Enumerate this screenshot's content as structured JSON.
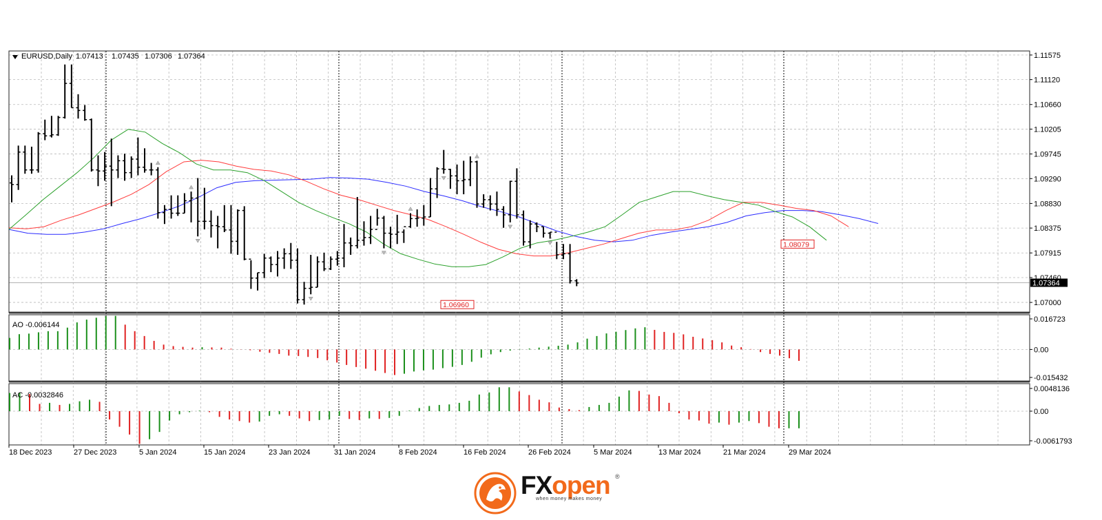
{
  "chart_data": {
    "type": "ohlc",
    "symbol_label": "EURUSD,Daily",
    "ohlc_header": [
      "1.07413",
      "1.07435",
      "1.07306",
      "1.07364"
    ],
    "last_price_label": "1.07364",
    "price_axis": {
      "ticks": [
        "1.11575",
        "1.11120",
        "1.10660",
        "1.10205",
        "1.09745",
        "1.09290",
        "1.08830",
        "1.08375",
        "1.07915",
        "1.07460",
        "1.07000"
      ],
      "ylim": [
        1.0681,
        1.1165
      ]
    },
    "date_labels": [
      "18 Dec 2023",
      "27 Dec 2023",
      "5 Jan 2024",
      "15 Jan 2024",
      "23 Jan 2024",
      "31 Jan 2024",
      "8 Feb 2024",
      "16 Feb 2024",
      "26 Feb 2024",
      "5 Mar 2024",
      "13 Mar 2024",
      "21 Mar 2024",
      "29 Mar 2024"
    ],
    "annotations": [
      {
        "text": "1.06960",
        "bar": 40,
        "value": 1.0696
      },
      {
        "text": "1.08079",
        "bar": 73,
        "value": 1.08079
      }
    ],
    "bars": [
      [
        1.0921,
        1.0935,
        1.0885,
        1.0918
      ],
      [
        1.0918,
        1.099,
        1.0908,
        1.0978
      ],
      [
        1.0978,
        1.099,
        1.0938,
        1.0945
      ],
      [
        1.0945,
        1.0988,
        1.0938,
        1.0945
      ],
      [
        1.0945,
        1.1015,
        1.094,
        1.1012
      ],
      [
        1.1012,
        1.1038,
        1.1,
        1.1008
      ],
      [
        1.1008,
        1.1045,
        1.1005,
        1.101
      ],
      [
        1.101,
        1.1045,
        1.1008,
        1.1042
      ],
      [
        1.1042,
        1.114,
        1.104,
        1.1105
      ],
      [
        1.1105,
        1.114,
        1.106,
        1.106
      ],
      [
        1.106,
        1.1085,
        1.104,
        1.1055
      ],
      [
        1.1055,
        1.1065,
        1.1036,
        1.1038
      ],
      [
        1.1038,
        1.104,
        1.0942,
        1.0945
      ],
      [
        1.0945,
        1.0972,
        1.0915,
        1.0943
      ],
      [
        1.0943,
        1.0978,
        1.0925,
        1.0952
      ],
      [
        1.0952,
        1.1003,
        1.0878,
        1.0945
      ],
      [
        1.0945,
        1.0972,
        1.093,
        1.0962
      ],
      [
        1.0962,
        1.0975,
        1.0925,
        1.094
      ],
      [
        1.094,
        1.097,
        1.093,
        1.0965
      ],
      [
        1.0965,
        1.1005,
        1.0935,
        1.095
      ],
      [
        1.095,
        1.0985,
        1.094,
        1.0945
      ],
      [
        1.0945,
        1.0958,
        1.0935,
        1.0945
      ],
      [
        1.0945,
        1.095,
        1.0855,
        1.0866
      ],
      [
        1.0866,
        1.088,
        1.0845,
        1.0872
      ],
      [
        1.0872,
        1.0898,
        1.0855,
        1.0865
      ],
      [
        1.0865,
        1.0898,
        1.086,
        1.0865
      ],
      [
        1.0865,
        1.0902,
        1.0865,
        1.0888
      ],
      [
        1.0888,
        1.0905,
        1.0848,
        1.0893
      ],
      [
        1.0893,
        1.093,
        1.0822,
        1.085
      ],
      [
        1.085,
        1.0912,
        1.0835,
        1.085
      ],
      [
        1.085,
        1.087,
        1.082,
        1.0842
      ],
      [
        1.0842,
        1.086,
        1.08,
        1.084
      ],
      [
        1.084,
        1.088,
        1.083,
        1.0834
      ],
      [
        1.0834,
        1.088,
        1.079,
        1.0813
      ],
      [
        1.0813,
        1.0872,
        1.0788,
        1.087
      ],
      [
        1.087,
        1.0878,
        1.0778,
        1.078
      ],
      [
        1.078,
        1.0778,
        1.0725,
        1.0745
      ],
      [
        1.0745,
        1.0755,
        1.0722,
        1.0755
      ],
      [
        1.0755,
        1.079,
        1.0745,
        1.0782
      ],
      [
        1.0782,
        1.0785,
        1.0756,
        1.077
      ],
      [
        1.077,
        1.0795,
        1.0748,
        1.0782
      ],
      [
        1.0782,
        1.08,
        1.0762,
        1.079
      ],
      [
        1.079,
        1.081,
        1.0762,
        1.0778
      ],
      [
        1.0778,
        1.08,
        1.0698,
        1.0705
      ],
      [
        1.0705,
        1.0738,
        1.0696,
        1.0726
      ],
      [
        1.0726,
        1.0788,
        1.0715,
        1.0728
      ],
      [
        1.0728,
        1.0785,
        1.0728,
        1.0775
      ],
      [
        1.0775,
        1.0792,
        1.0758,
        1.0762
      ],
      [
        1.0762,
        1.0785,
        1.076,
        1.078
      ],
      [
        1.078,
        1.0795,
        1.0768,
        1.0782
      ],
      [
        1.0782,
        1.0845,
        1.0765,
        1.081
      ],
      [
        1.081,
        1.082,
        1.0788,
        1.0805
      ],
      [
        1.0805,
        1.0895,
        1.08,
        1.0815
      ],
      [
        1.0815,
        1.085,
        1.0805,
        1.082
      ],
      [
        1.082,
        1.086,
        1.0808,
        1.0835
      ],
      [
        1.0835,
        1.0873,
        1.0842,
        1.0856
      ],
      [
        1.0856,
        1.086,
        1.08,
        1.0828
      ],
      [
        1.0828,
        1.084,
        1.08,
        1.0826
      ],
      [
        1.0826,
        1.0862,
        1.0808,
        1.083
      ],
      [
        1.083,
        1.0835,
        1.081,
        1.084
      ],
      [
        1.084,
        1.0865,
        1.0838,
        1.0855
      ],
      [
        1.0855,
        1.0872,
        1.084,
        1.0856
      ],
      [
        1.0856,
        1.088,
        1.0842,
        1.0858
      ],
      [
        1.0858,
        1.093,
        1.0858,
        1.091
      ],
      [
        1.091,
        1.095,
        1.0893,
        1.0947
      ],
      [
        1.0947,
        1.0982,
        1.0938,
        1.0946
      ],
      [
        1.0946,
        1.0947,
        1.091,
        1.0934
      ],
      [
        1.0934,
        1.0955,
        1.09,
        1.0925
      ],
      [
        1.0925,
        1.0962,
        1.09,
        1.0927
      ],
      [
        1.0927,
        1.097,
        1.0915,
        1.096
      ],
      [
        1.096,
        1.0962,
        1.0875,
        1.0882
      ],
      [
        1.0882,
        1.09,
        1.0875,
        1.089
      ],
      [
        1.089,
        1.0898,
        1.087,
        1.0882
      ],
      [
        1.0882,
        1.0905,
        1.086,
        1.0872
      ],
      [
        1.0872,
        1.0878,
        1.0838,
        1.0862
      ],
      [
        1.0862,
        1.0925,
        1.0848,
        1.0924
      ],
      [
        1.0924,
        1.0948,
        1.0855,
        1.0862
      ],
      [
        1.0862,
        1.087,
        1.0805,
        1.0812
      ],
      [
        1.0812,
        1.0852,
        1.08,
        1.0845
      ],
      [
        1.0845,
        1.0848,
        1.083,
        1.084
      ],
      [
        1.084,
        1.084,
        1.082,
        1.0828
      ],
      [
        1.0828,
        1.083,
        1.0818,
        1.083
      ],
      [
        1.083,
        1.0812,
        1.078,
        1.0788
      ],
      [
        1.0788,
        1.0808,
        1.078,
        1.079
      ],
      [
        1.079,
        1.0808,
        1.0735,
        1.074
      ],
      [
        1.074,
        1.0743,
        1.073,
        1.0736
      ]
    ],
    "fractals_up": [
      22,
      27,
      60,
      70,
      86,
      93,
      103,
      113,
      122,
      138
    ],
    "fractals_down": [
      28,
      45,
      56,
      65,
      75,
      81,
      92,
      104,
      119,
      135
    ],
    "ma_blue": [
      [
        1.0835,
        1.0828,
        1.0826,
        1.0826,
        1.083,
        1.0836,
        1.0846,
        1.0855,
        1.0866,
        1.0878,
        1.0894,
        1.0912,
        1.0922,
        1.0925,
        1.0926,
        1.0927,
        1.0928,
        1.0931,
        1.093,
        1.0928,
        1.0922,
        1.0915,
        1.0905,
        1.0897,
        1.0888,
        1.0877,
        1.0868,
        1.0858,
        1.0845,
        1.0832,
        1.0822,
        1.0815,
        1.0812,
        1.0815,
        1.0824,
        1.083,
        1.0835,
        1.084,
        1.0848,
        1.086,
        1.0866,
        1.087,
        1.087,
        1.0868,
        1.0862,
        1.0855,
        1.0846
      ]
    ],
    "ma_red": [
      1.0838,
      1.0836,
      1.084,
      1.0852,
      1.0862,
      1.0874,
      1.0886,
      1.09,
      1.0918,
      1.0942,
      1.096,
      1.0963,
      1.096,
      1.0952,
      1.0946,
      1.0943,
      1.0936,
      1.0924,
      1.091,
      1.0898,
      1.089,
      1.088,
      1.087,
      1.0862,
      1.0853,
      1.084,
      1.0826,
      1.0811,
      1.0798,
      1.079,
      1.0786,
      1.0786,
      1.0792,
      1.08,
      1.0808,
      1.0818,
      1.0828,
      1.0834,
      1.0834,
      1.084,
      1.0852,
      1.087,
      1.0885,
      1.0885,
      1.088,
      1.0874,
      1.087,
      1.086,
      1.084
    ],
    "ma_green": [
      1.0835,
      1.0862,
      1.089,
      1.0915,
      1.094,
      1.0968,
      1.1,
      1.102,
      1.1015,
      1.0994,
      1.0977,
      1.0956,
      1.0945,
      1.0945,
      1.094,
      1.0925,
      1.0905,
      1.0885,
      1.087,
      1.0857,
      1.0845,
      1.083,
      1.0808,
      1.079,
      1.078,
      1.0771,
      1.0766,
      1.0766,
      1.077,
      1.0784,
      1.08,
      1.081,
      1.0815,
      1.0822,
      1.083,
      1.084,
      1.0862,
      1.0885,
      1.0895,
      1.0905,
      1.0905,
      1.0897,
      1.089,
      1.0885,
      1.088,
      1.0868,
      1.0858,
      1.084,
      1.0815
    ],
    "ao": {
      "label": "AO -0.006144",
      "ticks": [
        "0.016723",
        "0.00",
        "-0.015432"
      ],
      "ylim": [
        -0.0172,
        0.0186
      ],
      "values": [
        0.0062,
        0.0082,
        0.0085,
        0.0092,
        0.0098,
        0.0098,
        0.0117,
        0.0145,
        0.016,
        0.017,
        0.0178,
        0.018,
        0.0133,
        0.0098,
        0.0072,
        0.0046,
        0.0026,
        0.0018,
        0.0014,
        0.001,
        0.0012,
        0.0011,
        0.001,
        0.0004,
        0.0001,
        -0.0004,
        -0.0012,
        -0.0018,
        -0.0024,
        -0.0033,
        -0.0035,
        -0.004,
        -0.0046,
        -0.0058,
        -0.007,
        -0.0083,
        -0.0094,
        -0.0103,
        -0.0114,
        -0.0126,
        -0.0137,
        -0.013,
        -0.0118,
        -0.0112,
        -0.0108,
        -0.01,
        -0.0093,
        -0.0083,
        -0.0066,
        -0.0044,
        -0.0026,
        -0.0014,
        -0.0006,
        0.0002,
        0.0005,
        0.001,
        0.0015,
        0.002,
        0.0026,
        0.0038,
        0.0058,
        0.0072,
        0.0086,
        0.0095,
        0.0104,
        0.0113,
        0.0119,
        0.0105,
        0.0094,
        0.0089,
        0.0081,
        0.0068,
        0.0059,
        0.005,
        0.0038,
        0.0021,
        0.0012,
        0.0002,
        -0.0014,
        -0.0024,
        -0.0033,
        -0.0047,
        -0.0061
      ]
    },
    "ac": {
      "label": "AC -0.0032846",
      "ticks": [
        "0.0048136",
        "0.00",
        "-0.0061793"
      ],
      "ylim": [
        -0.0065,
        0.0053
      ],
      "values": [
        0.0035,
        0.0035,
        0.0033,
        0.0014,
        0.0016,
        0.0012,
        0.0014,
        0.0019,
        0.0022,
        0.0018,
        -0.0016,
        -0.003,
        -0.0045,
        -0.0063,
        -0.0054,
        -0.004,
        -0.0018,
        -0.0006,
        -0.0002,
        0.0001,
        -0.0002,
        -0.0011,
        -0.0016,
        -0.0019,
        -0.0022,
        -0.002,
        -0.0009,
        -0.0006,
        -0.0009,
        -0.0014,
        -0.0019,
        -0.0017,
        -0.0016,
        -0.0009,
        -0.0015,
        -0.0017,
        -0.0014,
        -0.0015,
        -0.0013,
        -0.0009,
        0.0001,
        0.0006,
        0.001,
        0.0012,
        0.0013,
        0.0016,
        0.002,
        0.0032,
        0.0036,
        0.0046,
        0.0046,
        0.0038,
        0.0031,
        0.0022,
        0.0017,
        0.0007,
        0.0004,
        0.0002,
        0.0008,
        0.0012,
        0.0016,
        0.0028,
        0.004,
        0.0039,
        0.0032,
        0.0029,
        0.0016,
        -0.0004,
        -0.0016,
        -0.0018,
        -0.0024,
        -0.0022,
        -0.0026,
        -0.0022,
        -0.0019,
        -0.0023,
        -0.003,
        -0.0033,
        -0.0033,
        -0.0033
      ]
    },
    "colors": {
      "bar": "#000000",
      "ma_blue": "#2b2bff",
      "ma_red": "#ff3b3b",
      "ma_green": "#2aa02a",
      "up": "#1a8f1a",
      "down": "#e02020",
      "annotation": "#e02020",
      "grid": "#b8b8b8",
      "frame": "#222222"
    }
  },
  "brand": {
    "fx": "FX",
    "open": "open",
    "reg": "®",
    "tagline": "when money makes money"
  }
}
